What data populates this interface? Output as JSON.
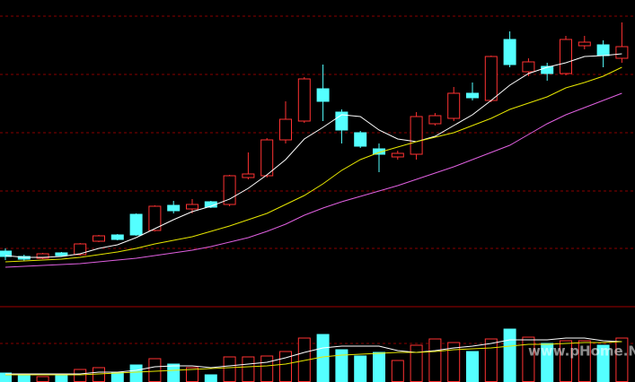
{
  "chart_data": [
    {
      "type": "candlestick",
      "ylim": [
        0,
        340
      ],
      "gridlines": [
        63,
        127,
        192,
        257,
        322
      ],
      "up_color": "#ff3232",
      "down_color": "#54ffff",
      "open": [
        60,
        54,
        52,
        58,
        56,
        71,
        78,
        101,
        83,
        111,
        107,
        115,
        112,
        142,
        144,
        184,
        205,
        241,
        215,
        192,
        174,
        165,
        168,
        202,
        208,
        236,
        228,
        296,
        260,
        266,
        258,
        289,
        290,
        275
      ],
      "close": [
        54,
        51,
        57,
        55,
        68,
        77,
        73,
        78,
        110,
        105,
        112,
        109,
        144,
        146,
        184,
        207,
        252,
        227,
        195,
        177,
        168,
        169,
        210,
        211,
        236,
        231,
        277,
        268,
        271,
        258,
        296,
        293,
        278,
        288
      ],
      "high": [
        63,
        56,
        58,
        59,
        69,
        78,
        79,
        102,
        111,
        116,
        118,
        116,
        145,
        170,
        186,
        227,
        254,
        268,
        218,
        194,
        180,
        172,
        215,
        214,
        243,
        248,
        278,
        305,
        275,
        270,
        300,
        300,
        295,
        315
      ],
      "low": [
        50,
        49,
        51,
        54,
        55,
        70,
        72,
        77,
        82,
        102,
        102,
        108,
        110,
        140,
        142,
        180,
        203,
        205,
        180,
        175,
        148,
        162,
        162,
        200,
        205,
        228,
        226,
        265,
        255,
        250,
        256,
        285,
        265,
        270
      ],
      "lines": [
        {
          "color": "#ffffff",
          "values": [
            55,
            53,
            53,
            54,
            57,
            63,
            67,
            75,
            85,
            95,
            104,
            110,
            118,
            130,
            145,
            162,
            185,
            198,
            212,
            210,
            195,
            185,
            182,
            188,
            200,
            212,
            228,
            245,
            258,
            265,
            270,
            277,
            278,
            280
          ]
        },
        {
          "color": "#e6e600",
          "values": [
            48,
            49,
            50,
            51,
            53,
            56,
            59,
            63,
            68,
            72,
            76,
            82,
            88,
            95,
            102,
            112,
            122,
            135,
            150,
            162,
            170,
            176,
            182,
            187,
            192,
            200,
            208,
            218,
            225,
            232,
            242,
            248,
            255,
            265
          ]
        },
        {
          "color": "#e060e0",
          "values": [
            42,
            43,
            44,
            45,
            46,
            48,
            50,
            52,
            55,
            58,
            61,
            65,
            70,
            75,
            82,
            90,
            100,
            108,
            115,
            121,
            127,
            133,
            140,
            147,
            154,
            162,
            170,
            178,
            190,
            202,
            212,
            220,
            228,
            236
          ]
        }
      ]
    },
    {
      "type": "volume",
      "ylim": [
        0,
        84
      ],
      "gridlines": [
        43
      ],
      "values": [
        10,
        8,
        6,
        8,
        14,
        16,
        11,
        19,
        26,
        20,
        16,
        8,
        28,
        28,
        29,
        34,
        49,
        53,
        36,
        29,
        33,
        24,
        41,
        48,
        44,
        34,
        48,
        59,
        50,
        43,
        46,
        46,
        41,
        49
      ],
      "lines": [
        {
          "color": "#ffffff",
          "values": [
            9,
            9,
            9,
            9,
            9,
            11,
            11,
            13,
            17,
            18,
            18,
            16,
            18,
            20,
            22,
            27,
            33,
            38,
            40,
            40,
            40,
            35,
            33,
            35,
            38,
            40,
            43,
            47,
            47,
            47,
            49,
            49,
            46,
            45
          ]
        },
        {
          "color": "#e6e600",
          "values": [
            8,
            8,
            8,
            8,
            8,
            9,
            10,
            11,
            12,
            13,
            14,
            15,
            16,
            17,
            18,
            20,
            24,
            28,
            30,
            31,
            32,
            33,
            33,
            34,
            36,
            37,
            38,
            40,
            42,
            42,
            43,
            44,
            44,
            45
          ]
        }
      ]
    }
  ],
  "watermark": "www.pHome.NET"
}
